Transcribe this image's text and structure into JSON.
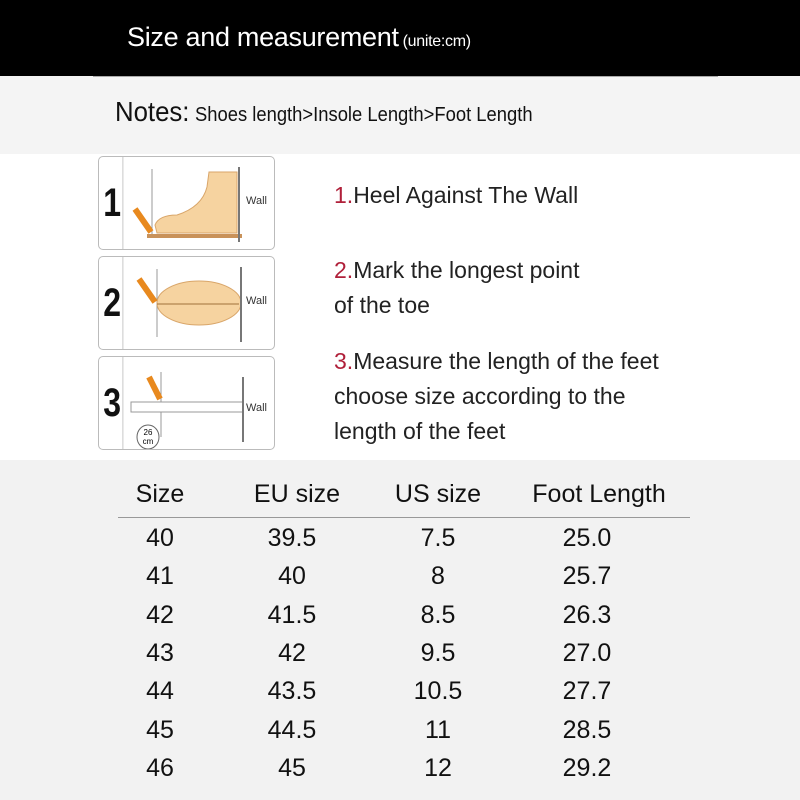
{
  "header": {
    "title": "Size and measurement",
    "unit": "(unite:cm)"
  },
  "notes": {
    "label": "Notes:",
    "text": "Shoes length>Insole Length>Foot Length"
  },
  "steps": [
    {
      "number": "1",
      "wall": "Wall",
      "lines": [
        "1.Heel Against The Wall"
      ]
    },
    {
      "number": "2",
      "wall": "Wall",
      "lines": [
        "2.Mark the longest point",
        "of the toe"
      ]
    },
    {
      "number": "3",
      "wall": "Wall",
      "ruler_label": "26 cm",
      "lines": [
        "3.Measure the length of the feet",
        "choose size according to the",
        "length of the feet"
      ]
    }
  ],
  "colors": {
    "step_number": "#b0203a",
    "header_bg": "#000000",
    "foot": "#f6d3a0",
    "pencil": "#e8891e"
  },
  "table": {
    "columns": [
      "Size",
      "EU size",
      "US size",
      "Foot Length"
    ],
    "rows": [
      [
        "40",
        "39.5",
        "7.5",
        "25.0"
      ],
      [
        "41",
        "40",
        "8",
        "25.7"
      ],
      [
        "42",
        "41.5",
        "8.5",
        "26.3"
      ],
      [
        "43",
        "42",
        "9.5",
        "27.0"
      ],
      [
        "44",
        "43.5",
        "10.5",
        "27.7"
      ],
      [
        "45",
        "44.5",
        "11",
        "28.5"
      ],
      [
        "46",
        "45",
        "12",
        "29.2"
      ]
    ]
  }
}
